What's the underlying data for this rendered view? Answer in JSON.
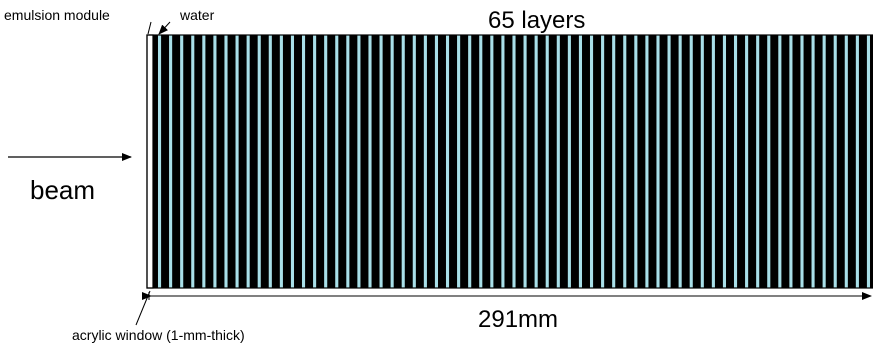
{
  "labels": {
    "emulsion_module": "emulsion module",
    "water": "water",
    "layer_count_label": "65 layers",
    "beam": "beam",
    "length": "291mm",
    "acrylic_window": "acrylic window (1-mm-thick)"
  },
  "detector": {
    "layer_count": 65,
    "colors": {
      "emulsion": "#000000",
      "water": "#a9dfe8",
      "acrylic": "#ffffff",
      "outline": "#000000"
    }
  }
}
